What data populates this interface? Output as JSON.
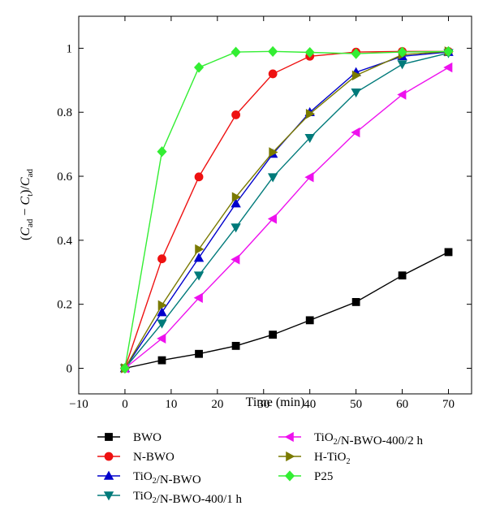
{
  "chart_data": {
    "type": "line",
    "xlabel": "Time (min)",
    "ylabel": "(C_ad − C_t)/C_ad",
    "xlim": [
      -10,
      75
    ],
    "ylim": [
      -0.08,
      1.1
    ],
    "xticks": [
      -10,
      0,
      10,
      20,
      30,
      40,
      50,
      60,
      70
    ],
    "yticks": [
      0,
      0.2,
      0.4,
      0.6,
      0.8,
      1
    ],
    "xtick_labels": [
      "−10",
      "0",
      "10",
      "20",
      "30",
      "40",
      "50",
      "60",
      "70"
    ],
    "ytick_labels": [
      "0",
      "0.2",
      "0.4",
      "0.6",
      "0.8",
      "1"
    ],
    "grid": false,
    "legend_position": "below",
    "series": [
      {
        "name": "BWO",
        "color": "#000000",
        "marker": "square",
        "x": [
          0,
          8,
          16,
          24,
          32,
          40,
          50,
          60,
          70
        ],
        "y": [
          0.0,
          0.025,
          0.045,
          0.07,
          0.105,
          0.15,
          0.207,
          0.29,
          0.363
        ]
      },
      {
        "name": "N-BWO",
        "color": "#ee1111",
        "marker": "circle",
        "x": [
          0,
          8,
          16,
          24,
          32,
          40,
          50,
          60,
          70
        ],
        "y": [
          0.0,
          0.342,
          0.598,
          0.792,
          0.92,
          0.975,
          0.988,
          0.99,
          0.99
        ]
      },
      {
        "name": "TiO2/N-BWO",
        "color": "#0000cc",
        "marker": "triangle-up",
        "x": [
          0,
          8,
          16,
          24,
          32,
          40,
          50,
          60,
          70
        ],
        "y": [
          0.0,
          0.175,
          0.345,
          0.515,
          0.67,
          0.8,
          0.925,
          0.975,
          0.988
        ]
      },
      {
        "name": "TiO2/N-BWO-400/1 h",
        "color": "#007a7a",
        "marker": "triangle-down",
        "x": [
          0,
          8,
          16,
          24,
          32,
          40,
          50,
          60,
          70
        ],
        "y": [
          0.0,
          0.14,
          0.29,
          0.44,
          0.597,
          0.72,
          0.862,
          0.95,
          0.985
        ]
      },
      {
        "name": "TiO2/N-BWO-400/2 h",
        "color": "#ee11ee",
        "marker": "triangle-left",
        "x": [
          0,
          8,
          16,
          24,
          32,
          40,
          50,
          60,
          70
        ],
        "y": [
          0.0,
          0.093,
          0.22,
          0.34,
          0.467,
          0.597,
          0.737,
          0.855,
          0.94
        ]
      },
      {
        "name": "H-TiO2",
        "color": "#7a7a00",
        "marker": "triangle-right",
        "x": [
          0,
          8,
          16,
          24,
          32,
          40,
          50,
          60,
          70
        ],
        "y": [
          0.0,
          0.197,
          0.372,
          0.535,
          0.675,
          0.795,
          0.915,
          0.98,
          0.99
        ]
      },
      {
        "name": "P25",
        "color": "#33ee33",
        "marker": "diamond",
        "x": [
          0,
          8,
          16,
          24,
          32,
          40,
          50,
          60,
          70
        ],
        "y": [
          0.0,
          0.677,
          0.94,
          0.988,
          0.99,
          0.987,
          0.983,
          0.988,
          0.99
        ]
      }
    ]
  }
}
